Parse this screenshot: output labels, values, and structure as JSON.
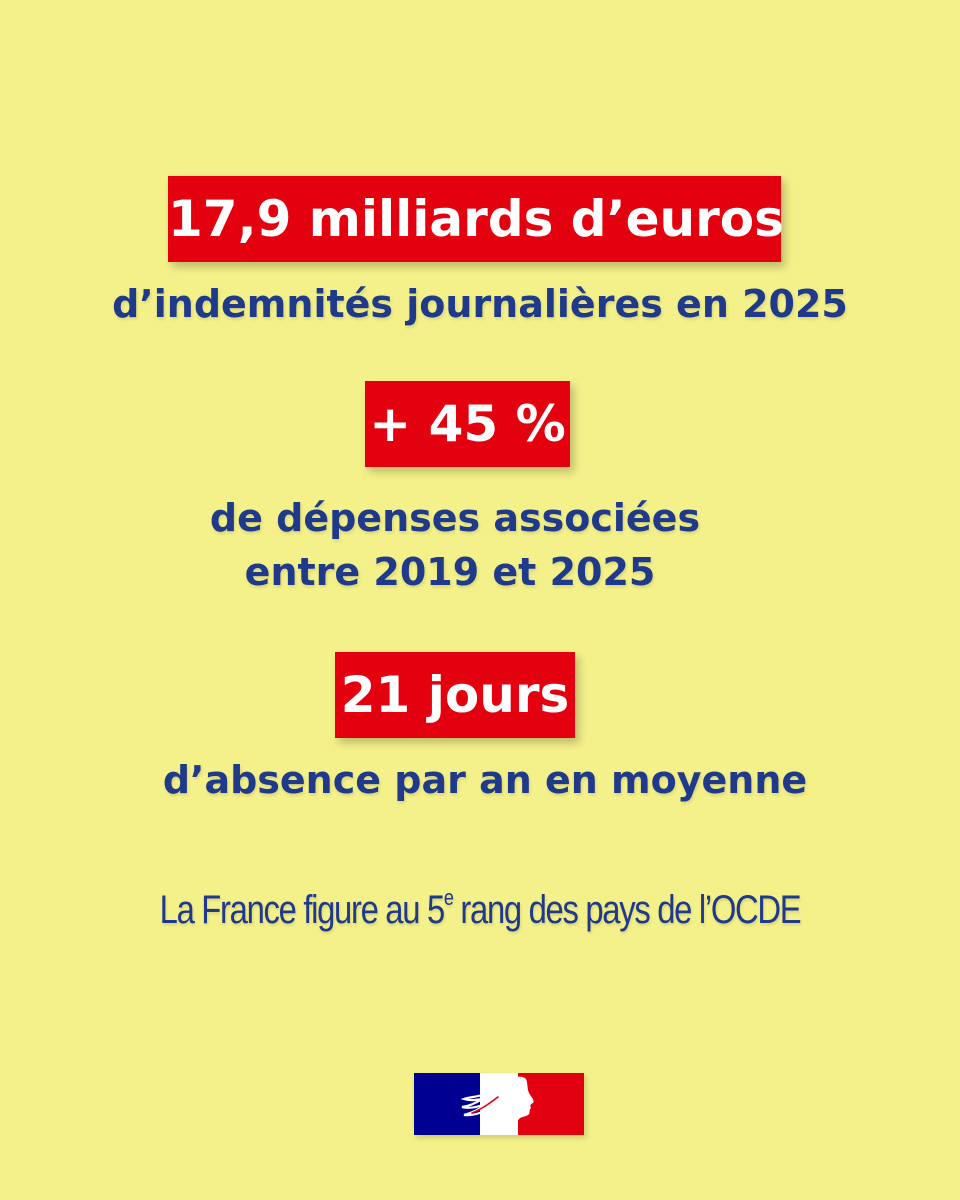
{
  "stats": [
    {
      "value": "17,9 milliards d’euros",
      "label_lines": [
        "d’indemnités journalières en 2025"
      ]
    },
    {
      "value": "+ 45 %",
      "label_lines": [
        "de dépenses associées",
        "entre 2019 et 2025"
      ]
    },
    {
      "value": "21 jours",
      "label_lines": [
        "d’absence par an en moyenne"
      ]
    }
  ],
  "ranking": {
    "before": "La France figure au 5",
    "superscript": "e",
    "after": " rang des pays de l’OCDE"
  },
  "colors": {
    "background": "#f4f08a",
    "highlight": "#e3000f",
    "text": "#1f3a8a",
    "flag_blue": "#000091",
    "flag_red": "#e1000f"
  },
  "logo": {
    "icon": "marianne-flag-logo"
  }
}
